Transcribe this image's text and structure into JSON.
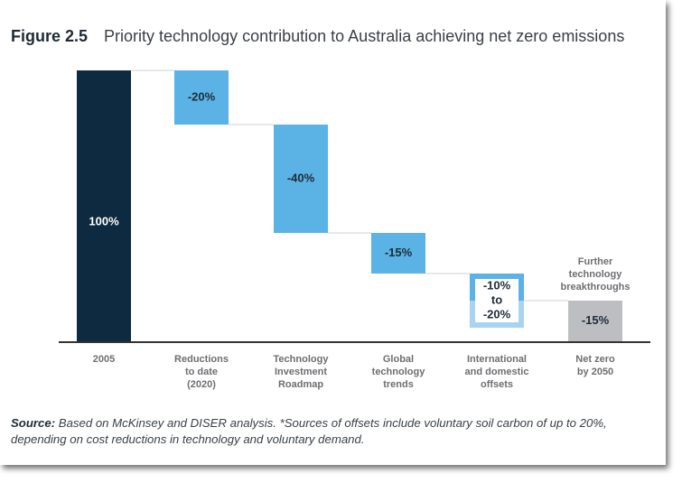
{
  "figure": {
    "label": "Figure 2.5",
    "title": "Priority technology contribution to Australia achieving net zero emissions"
  },
  "chart_data": {
    "type": "bar",
    "subtype": "waterfall",
    "title": "Priority technology contribution to Australia achieving net zero emissions",
    "xlabel": "",
    "ylabel": "",
    "ylim": [
      0,
      100
    ],
    "grid": false,
    "legend": "none",
    "categories": [
      [
        "2005"
      ],
      [
        "Reductions",
        "to date",
        "(2020)"
      ],
      [
        "Technology",
        "Investment",
        "Roadmap"
      ],
      [
        "Global",
        "technology",
        "trends"
      ],
      [
        "International",
        "and domestic",
        "offsets"
      ],
      [
        "Net zero",
        "by 2050"
      ]
    ],
    "bars": [
      {
        "name": "2005",
        "kind": "total",
        "start": 0,
        "end": 100,
        "label": [
          "100%"
        ],
        "color": "#0e2a40",
        "label_color": "#ffffff"
      },
      {
        "name": "Reductions to date (2020)",
        "kind": "decrease",
        "start": 100,
        "end": 80,
        "value": -20,
        "label": [
          "-20%"
        ],
        "color": "#5ab3e4",
        "label_color": "#1f2a36"
      },
      {
        "name": "Technology Investment Roadmap",
        "kind": "decrease",
        "start": 80,
        "end": 40,
        "value": -40,
        "label": [
          "-40%"
        ],
        "color": "#5ab3e4",
        "label_color": "#1f2a36"
      },
      {
        "name": "Global technology trends",
        "kind": "decrease",
        "start": 40,
        "end": 25,
        "value": -15,
        "label": [
          "-15%"
        ],
        "color": "#5ab3e4",
        "label_color": "#1f2a36"
      },
      {
        "name": "International and domestic offsets",
        "kind": "range",
        "start": 25,
        "end": 5,
        "value_range": [
          -10,
          -20
        ],
        "split": 15,
        "label": [
          "-10%",
          "to",
          "-20%"
        ],
        "color": "#5ab3e4",
        "color_light": "#a8d4f2",
        "label_color": "#1f2a36"
      },
      {
        "name": "Net zero by 2050",
        "kind": "remainder",
        "start": 15,
        "end": 0,
        "value": -15,
        "label": [
          "-15%"
        ],
        "color": "#bcbec2",
        "label_color": "#1f2a36",
        "annotation": [
          "Further",
          "technology",
          "breakthroughs"
        ]
      }
    ],
    "connector_color": "#d8dadc",
    "axis_color": "#333333",
    "category_label_color": "#6d6e71"
  },
  "source": {
    "label": "Source:",
    "text": " Based on McKinsey and DISER analysis. *Sources of offsets include voluntary soil carbon of up to 20%, depending on cost reductions in technology and voluntary demand."
  }
}
